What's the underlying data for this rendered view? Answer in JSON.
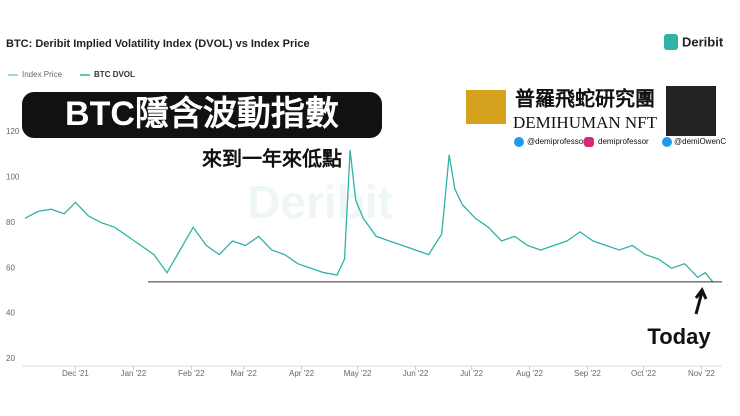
{
  "chart_data": {
    "type": "line",
    "title": "BTC: Deribit Implied Volatility Index (DVOL) vs Index Price",
    "brand": "Deribit",
    "watermark": "Deribit",
    "overlay_title": "BTC隱含波動指數",
    "overlay_subtitle": "來到一年來低點",
    "overlay_group": "普羅飛蛇研究團",
    "overlay_nft": "DEMIHUMAN NFT",
    "overlay_handles": [
      "@demiprofessor",
      "demiprofessor",
      "@demiOwenC"
    ],
    "annotation": "Today",
    "reference_value": 54,
    "x": [
      -27,
      -20,
      -13,
      -6,
      0,
      7,
      14,
      21,
      28,
      35,
      42,
      49,
      56,
      63,
      70,
      77,
      84,
      91,
      98,
      105,
      112,
      119,
      126,
      133,
      140,
      144,
      147,
      150,
      154,
      161,
      168,
      175,
      182,
      189,
      196,
      200,
      203,
      207,
      214,
      221,
      228,
      235,
      242,
      249,
      256,
      263,
      270,
      277,
      284,
      291,
      298,
      305,
      312,
      319,
      326,
      333,
      337,
      341
    ],
    "series": [
      {
        "name": "Index Price",
        "color": "#7fd1c8",
        "values": null
      },
      {
        "name": "BTC DVOL",
        "color": "#2fb3a6",
        "values": [
          82,
          85,
          86,
          84,
          89,
          83,
          80,
          78,
          74,
          70,
          66,
          58,
          68,
          78,
          70,
          66,
          72,
          70,
          74,
          68,
          66,
          62,
          60,
          58,
          57,
          64,
          112,
          90,
          82,
          74,
          72,
          70,
          68,
          66,
          75,
          110,
          95,
          88,
          82,
          78,
          72,
          74,
          70,
          68,
          70,
          72,
          76,
          72,
          70,
          68,
          70,
          66,
          64,
          60,
          62,
          56,
          58,
          54
        ]
      }
    ],
    "xlim": [
      -27,
      346
    ],
    "xticks": [
      {
        "value": 0,
        "label": "Dec '21"
      },
      {
        "value": 31,
        "label": "Jan '22"
      },
      {
        "value": 62,
        "label": "Feb '22"
      },
      {
        "value": 90,
        "label": "Mar '22"
      },
      {
        "value": 121,
        "label": "Apr '22"
      },
      {
        "value": 151,
        "label": "May '22"
      },
      {
        "value": 182,
        "label": "Jun '22"
      },
      {
        "value": 212,
        "label": "Jul '22"
      },
      {
        "value": 243,
        "label": "Aug '22"
      },
      {
        "value": 274,
        "label": "Sep '22"
      },
      {
        "value": 304,
        "label": "Oct '22"
      },
      {
        "value": 335,
        "label": "Nov '22"
      }
    ],
    "ylim": [
      20,
      120
    ],
    "yticks": [
      20,
      40,
      60,
      80,
      100,
      120
    ]
  }
}
